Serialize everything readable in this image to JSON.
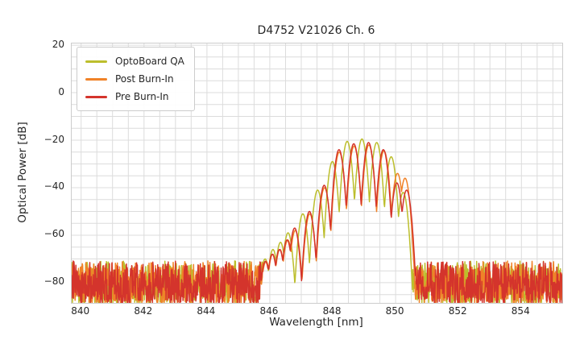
{
  "chart_data": {
    "type": "line",
    "title": "D4752 V21026 Ch. 6",
    "xlabel": "Wavelength [nm]",
    "ylabel": "Optical Power [dB]",
    "xlim": [
      839.7,
      855.3
    ],
    "ylim": [
      -88.5,
      20.7
    ],
    "xticks": {
      "values": [
        840,
        842,
        844,
        846,
        848,
        850,
        852,
        854
      ],
      "labels": [
        "840",
        "842",
        "844",
        "846",
        "848",
        "850",
        "852",
        "854"
      ]
    },
    "yticks": {
      "values": [
        20,
        0,
        -20,
        -40,
        -60,
        -80
      ],
      "labels": [
        "20",
        "0",
        "−20",
        "−40",
        "−60",
        "−80"
      ]
    },
    "grid": {
      "on": true,
      "x_start": 840,
      "x_step": 0.5,
      "y_start": -85,
      "y_step": 5,
      "color": "#dcdcdc"
    },
    "spine_color": "#cccccc",
    "text_color": "#262626",
    "legend": {
      "position": "upper left"
    },
    "noise_floor": {
      "max_dB": -70.8,
      "min_dB": -89.5,
      "skew": 0.85,
      "description": "random noise floor outside the laser band, clipped at plot bottom"
    },
    "mode_valley_drop_dB": 28,
    "mode_half_spacing_nm": 0.245,
    "band_floor_dB": -80.5,
    "sample_step_nm": 0.012,
    "series": [
      {
        "name": "OptoBoard QA",
        "color": "#bcbe2c",
        "seed": 7,
        "noise_until_nm": 846.18,
        "noise_from_nm": 850.45,
        "mode_peaks": [
          [
            845.85,
            -70
          ],
          [
            846.1,
            -66
          ],
          [
            846.34,
            -63
          ],
          [
            846.58,
            -59
          ],
          [
            847.05,
            -51
          ],
          [
            847.52,
            -41
          ],
          [
            847.99,
            -29
          ],
          [
            848.46,
            -20.5
          ],
          [
            848.93,
            -19.5
          ],
          [
            849.4,
            -21
          ],
          [
            849.86,
            -27
          ],
          [
            850.24,
            -42
          ]
        ]
      },
      {
        "name": "Post Burn-In",
        "color": "#f08228",
        "seed": 13,
        "noise_until_nm": 846.02,
        "noise_from_nm": 850.55,
        "mode_peaks": [
          [
            845.88,
            -71
          ],
          [
            846.09,
            -68
          ],
          [
            846.32,
            -66
          ],
          [
            846.57,
            -62
          ],
          [
            846.81,
            -58
          ],
          [
            847.27,
            -51
          ],
          [
            847.74,
            -40
          ],
          [
            848.21,
            -25
          ],
          [
            848.68,
            -22.5
          ],
          [
            849.15,
            -22
          ],
          [
            849.63,
            -24.5
          ],
          [
            850.06,
            -34
          ],
          [
            850.3,
            -36
          ]
        ]
      },
      {
        "name": "Pre Burn-In",
        "color": "#d4342c",
        "seed": 99,
        "noise_until_nm": 845.98,
        "noise_from_nm": 850.55,
        "mode_peaks": [
          [
            845.86,
            -71
          ],
          [
            846.08,
            -68
          ],
          [
            846.31,
            -66
          ],
          [
            846.55,
            -62
          ],
          [
            846.79,
            -57
          ],
          [
            847.26,
            -50
          ],
          [
            847.73,
            -39
          ],
          [
            848.2,
            -24
          ],
          [
            848.67,
            -21.5
          ],
          [
            849.14,
            -21
          ],
          [
            849.61,
            -24
          ],
          [
            850.04,
            -38
          ],
          [
            850.35,
            -41
          ]
        ]
      }
    ]
  }
}
